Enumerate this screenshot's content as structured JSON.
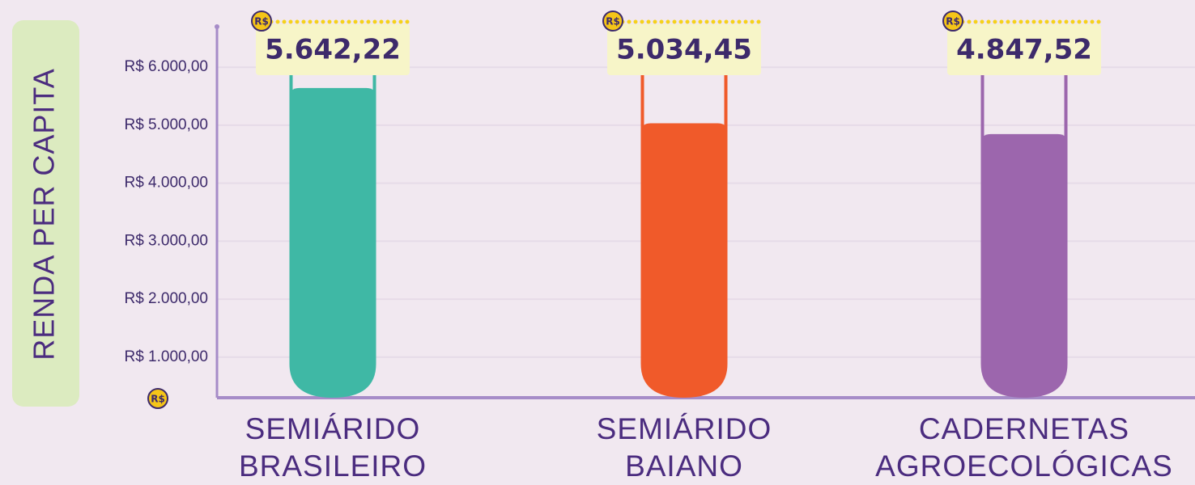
{
  "chart_data": {
    "type": "bar",
    "y_axis_label": "RENDA PER CAPITA",
    "currency_symbol": "R$",
    "categories": [
      "SEMIÁRIDO\nBRASILEIRO",
      "SEMIÁRIDO\nBAIANO",
      "CADERNETAS\nAGROECOLÓGICAS"
    ],
    "values": [
      5642.22,
      5034.45,
      4847.52
    ],
    "value_labels": [
      "5.642,22",
      "5.034,45",
      "4.847,52"
    ],
    "colors": [
      "#3fb8a5",
      "#f05a2a",
      "#9c66ad"
    ],
    "ylim": [
      300,
      6700
    ],
    "yticks": [
      {
        "value": 1000,
        "label": "R$ 1.000,00"
      },
      {
        "value": 2000,
        "label": "R$ 2.000,00"
      },
      {
        "value": 3000,
        "label": "R$ 3.000,00"
      },
      {
        "value": 4000,
        "label": "R$ 4.000,00"
      },
      {
        "value": 5000,
        "label": "R$ 5.000,00"
      },
      {
        "value": 6000,
        "label": "R$ 6.000,00"
      }
    ],
    "grid": true
  }
}
